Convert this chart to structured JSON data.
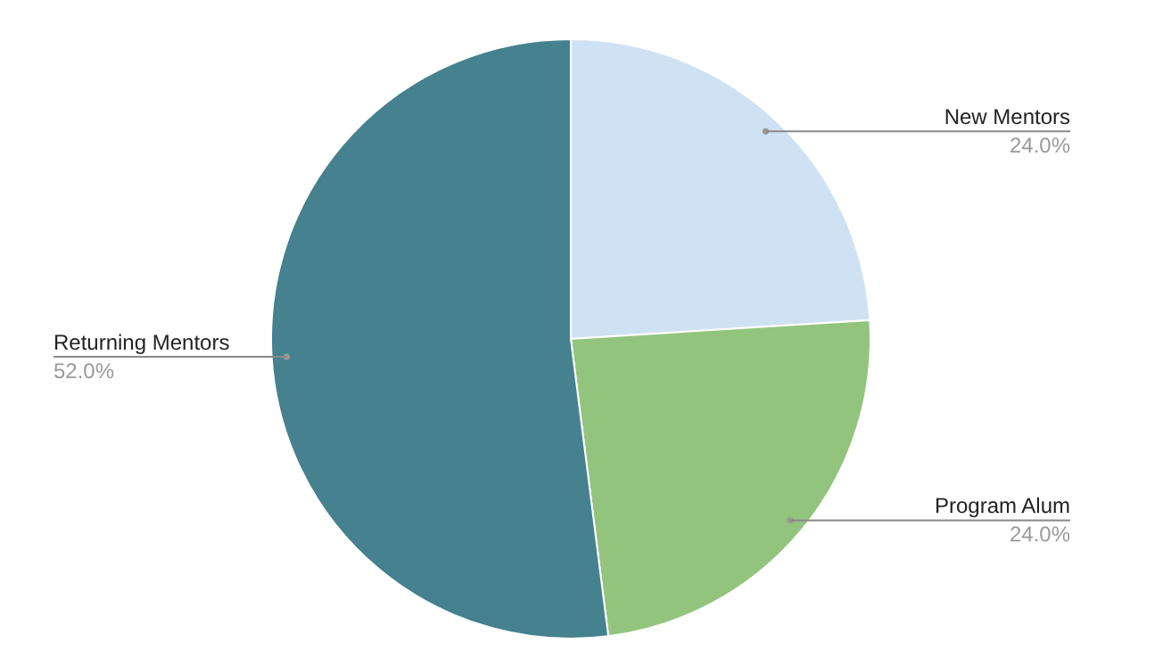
{
  "chart_data": {
    "type": "pie",
    "categories": [
      "New Mentors",
      "Program Alum",
      "Returning Mentors"
    ],
    "values": [
      24,
      24,
      52
    ],
    "colors": [
      "#cfe2f3",
      "#93c47d",
      "#45818e"
    ],
    "value_labels": [
      "24.0%",
      "24.0%",
      "52.0%"
    ]
  }
}
